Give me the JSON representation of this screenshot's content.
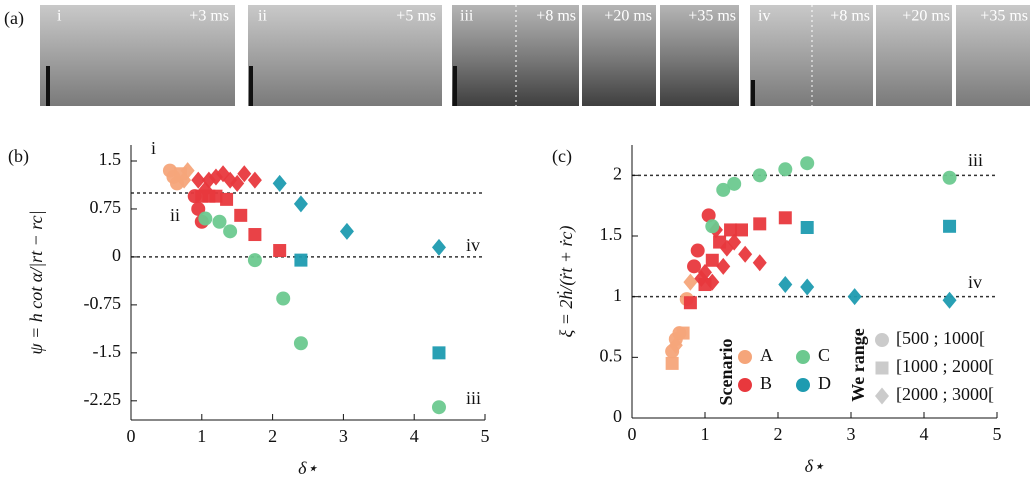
{
  "photos": {
    "label": "(a)",
    "panels": [
      {
        "id": "i",
        "times": [
          "+3 ms"
        ]
      },
      {
        "id": "ii",
        "times": [
          "+5 ms"
        ]
      },
      {
        "id": "iii",
        "times": [
          "+8 ms",
          "+20 ms",
          "+35 ms"
        ]
      },
      {
        "id": "iv",
        "times": [
          "+8 ms",
          "+20 ms",
          "+35 ms"
        ]
      }
    ]
  },
  "chart_data": [
    {
      "type": "scatter",
      "panel": "(b)",
      "xlabel": "δ⋆",
      "ylabel": "ψ = h cot α/|rt − rc|",
      "xlim": [
        0,
        5
      ],
      "xticks": [
        0,
        1,
        2,
        3,
        4,
        5
      ],
      "ylim": [
        -2.55,
        1.75
      ],
      "yticks": [
        -2.25,
        -1.5,
        -0.75,
        0,
        0.75,
        1.5
      ],
      "hlines": [
        1,
        0
      ],
      "annotations": [
        "i",
        "ii",
        "iv",
        "iii"
      ],
      "series": [
        {
          "color": "#f5a57a",
          "x": [
            0.55,
            0.6,
            0.65,
            0.7,
            0.75,
            0.8
          ],
          "values": [
            1.35,
            1.25,
            1.15,
            1.3,
            1.2,
            1.35
          ],
          "markers": [
            "circle",
            "circle",
            "circle",
            "square",
            "diamond",
            "diamond"
          ]
        },
        {
          "color": "#e8383d",
          "x": [
            0.9,
            0.95,
            1.0,
            1.0,
            1.05,
            1.1,
            1.2,
            1.1,
            1.2,
            1.3,
            1.35,
            1.4,
            1.5,
            1.55,
            1.6,
            1.75,
            1.75,
            2.1,
            0.95
          ],
          "values": [
            0.95,
            0.75,
            0.55,
            0.95,
            1.05,
            1.2,
            1.25,
            0.95,
            0.95,
            1.3,
            0.9,
            1.2,
            1.15,
            0.65,
            1.3,
            1.2,
            0.35,
            0.1,
            1.2
          ],
          "markers": [
            "circle",
            "circle",
            "circle",
            "square",
            "diamond",
            "diamond",
            "diamond",
            "square",
            "square",
            "diamond",
            "square",
            "diamond",
            "diamond",
            "square",
            "diamond",
            "diamond",
            "square",
            "square",
            "diamond"
          ]
        },
        {
          "color": "#6cc98f",
          "x": [
            1.05,
            1.25,
            1.4,
            1.75,
            2.15,
            2.4,
            4.35
          ],
          "values": [
            0.6,
            0.55,
            0.4,
            -0.05,
            -0.65,
            -1.35,
            -2.35
          ],
          "markers": [
            "circle",
            "circle",
            "circle",
            "circle",
            "circle",
            "circle",
            "circle"
          ]
        },
        {
          "color": "#1e9bb0",
          "x": [
            2.1,
            2.4,
            3.05,
            2.4,
            4.35,
            4.35
          ],
          "values": [
            1.15,
            0.83,
            0.4,
            -0.05,
            0.15,
            -1.5
          ],
          "markers": [
            "diamond",
            "diamond",
            "diamond",
            "square",
            "diamond",
            "square"
          ]
        }
      ]
    },
    {
      "type": "scatter",
      "panel": "(c)",
      "xlabel": "δ⋆",
      "ylabel": "ξ = 2ḣ/(ṙt + ṙc)",
      "xlim": [
        0,
        5
      ],
      "xticks": [
        0,
        1,
        2,
        3,
        4,
        5
      ],
      "ylim": [
        0,
        2.25
      ],
      "yticks": [
        0,
        0.5,
        1,
        1.5,
        2
      ],
      "hlines": [
        2,
        1
      ],
      "annotations": [
        "iii",
        "iv"
      ],
      "legend": {
        "title": "Scenario"
      },
      "marker_legend": {
        "title": "We range",
        "color": "#c8c8c8",
        "items": [
          {
            "label": "[500 ; 1000[",
            "marker": "circle"
          },
          {
            "label": "[1000 ; 2000[",
            "marker": "square"
          },
          {
            "label": "[2000 ; 3000[",
            "marker": "diamond"
          }
        ]
      },
      "series": [
        {
          "name": "A",
          "color": "#f5a57a",
          "x": [
            0.55,
            0.55,
            0.6,
            0.6,
            0.65,
            0.7,
            0.75,
            0.8
          ],
          "values": [
            0.45,
            0.55,
            0.65,
            0.6,
            0.7,
            0.7,
            0.98,
            1.12
          ],
          "markers": [
            "square",
            "circle",
            "circle",
            "diamond",
            "circle",
            "square",
            "circle",
            "diamond"
          ]
        },
        {
          "name": "B",
          "color": "#e8383d",
          "x": [
            0.8,
            0.85,
            0.9,
            0.95,
            1.0,
            1.0,
            1.05,
            1.1,
            1.1,
            1.15,
            1.2,
            1.25,
            1.3,
            1.35,
            1.4,
            1.5,
            1.55,
            1.75,
            1.75,
            2.1
          ],
          "values": [
            0.95,
            1.25,
            1.38,
            1.15,
            1.1,
            1.2,
            1.67,
            1.12,
            1.3,
            1.55,
            1.45,
            1.25,
            1.4,
            1.55,
            1.45,
            1.55,
            1.35,
            1.6,
            1.28,
            1.65
          ],
          "markers": [
            "square",
            "circle",
            "circle",
            "diamond",
            "square",
            "diamond",
            "circle",
            "diamond",
            "square",
            "diamond",
            "square",
            "diamond",
            "diamond",
            "square",
            "diamond",
            "square",
            "diamond",
            "square",
            "diamond",
            "square"
          ]
        },
        {
          "name": "C",
          "color": "#6cc98f",
          "x": [
            1.1,
            1.25,
            1.4,
            1.75,
            2.1,
            2.4,
            4.35
          ],
          "values": [
            1.58,
            1.88,
            1.93,
            2.0,
            2.05,
            2.1,
            1.98
          ],
          "markers": [
            "circle",
            "circle",
            "circle",
            "circle",
            "circle",
            "circle",
            "circle"
          ]
        },
        {
          "name": "D",
          "color": "#1e9bb0",
          "x": [
            2.1,
            2.4,
            3.05,
            2.4,
            4.35,
            4.35
          ],
          "values": [
            1.1,
            1.08,
            1.0,
            1.57,
            0.97,
            1.58
          ],
          "markers": [
            "diamond",
            "diamond",
            "diamond",
            "square",
            "diamond",
            "square"
          ]
        }
      ]
    }
  ]
}
